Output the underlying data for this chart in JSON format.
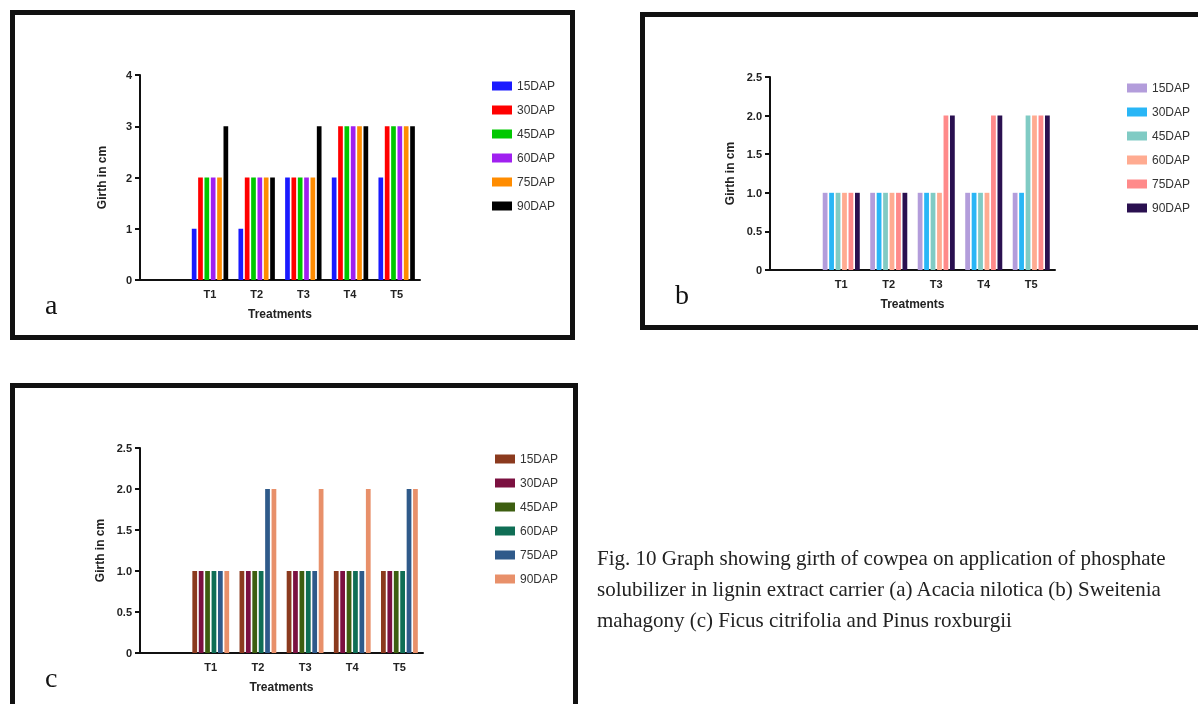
{
  "chart_data": [
    {
      "type": "bar",
      "xlabel": "Treatments",
      "ylabel": "Girth in cm",
      "categories": [
        null,
        "T1",
        "T2",
        "T3",
        "T4",
        "T5"
      ],
      "ylim": [
        0,
        4
      ],
      "yticks": [
        0,
        1,
        2,
        3,
        4
      ],
      "grid": false,
      "legend": "right",
      "annotations": [
        "a"
      ],
      "series": [
        {
          "name": "15DAP",
          "color": "#1a1aff",
          "values": [
            null,
            1,
            1,
            2,
            2,
            2
          ]
        },
        {
          "name": "30DAP",
          "color": "#ff0000",
          "values": [
            null,
            2,
            2,
            2,
            3,
            3
          ]
        },
        {
          "name": "45DAP",
          "color": "#00c800",
          "values": [
            null,
            2,
            2,
            2,
            3,
            3
          ]
        },
        {
          "name": "60DAP",
          "color": "#a020f0",
          "values": [
            null,
            2,
            2,
            2,
            3,
            3
          ]
        },
        {
          "name": "75DAP",
          "color": "#ff8c00",
          "values": [
            null,
            2,
            2,
            2,
            3,
            3
          ]
        },
        {
          "name": "90DAP",
          "color": "#000000",
          "values": [
            null,
            3,
            2,
            3,
            3,
            3
          ]
        }
      ]
    },
    {
      "type": "bar",
      "xlabel": "Treatments",
      "ylabel": "Girth in cm",
      "categories": [
        null,
        "T1",
        "T2",
        "T3",
        "T4",
        "T5"
      ],
      "ylim": [
        0,
        2.5
      ],
      "yticks": [
        0,
        {
          "value": 0.5,
          "label": "0.5"
        },
        {
          "value": 1,
          "label": "1.0"
        },
        {
          "value": 1.5,
          "label": "1.5"
        },
        {
          "value": 2,
          "label": "2.0"
        },
        {
          "value": 2.5,
          "label": "2.5"
        }
      ],
      "grid": false,
      "legend": "right",
      "annotations": [
        "b"
      ],
      "series": [
        {
          "name": "15DAP",
          "color": "#b39ddb",
          "values": [
            null,
            1,
            1,
            1,
            1,
            1
          ]
        },
        {
          "name": "30DAP",
          "color": "#29b6f6",
          "values": [
            null,
            1,
            1,
            1,
            1,
            1
          ]
        },
        {
          "name": "45DAP",
          "color": "#80cbc4",
          "values": [
            null,
            1,
            1,
            1,
            1,
            2
          ]
        },
        {
          "name": "60DAP",
          "color": "#ffab91",
          "values": [
            null,
            1,
            1,
            1,
            1,
            2
          ]
        },
        {
          "name": "75DAP",
          "color": "#ff8a8a",
          "values": [
            null,
            1,
            1,
            2,
            2,
            2
          ]
        },
        {
          "name": "90DAP",
          "color": "#2a1050",
          "values": [
            null,
            1,
            1,
            2,
            2,
            2
          ]
        }
      ]
    },
    {
      "type": "bar",
      "xlabel": "Treatments",
      "ylabel": "Girth in cm",
      "categories": [
        null,
        "T1",
        "T2",
        "T3",
        "T4",
        "T5"
      ],
      "ylim": [
        0,
        2.5
      ],
      "yticks": [
        0,
        {
          "value": 0.5,
          "label": "0.5"
        },
        {
          "value": 1,
          "label": "1.0"
        },
        {
          "value": 1.5,
          "label": "1.5"
        },
        {
          "value": 2,
          "label": "2.0"
        },
        {
          "value": 2.5,
          "label": "2.5"
        }
      ],
      "grid": false,
      "legend": "right",
      "annotations": [
        "c"
      ],
      "series": [
        {
          "name": "15DAP",
          "color": "#8b3a1e",
          "values": [
            null,
            1,
            1,
            1,
            1,
            1
          ]
        },
        {
          "name": "30DAP",
          "color": "#7b1040",
          "values": [
            null,
            1,
            1,
            1,
            1,
            1
          ]
        },
        {
          "name": "45DAP",
          "color": "#3d5e10",
          "values": [
            null,
            1,
            1,
            1,
            1,
            1
          ]
        },
        {
          "name": "60DAP",
          "color": "#0f6e55",
          "values": [
            null,
            1,
            1,
            1,
            1,
            1
          ]
        },
        {
          "name": "75DAP",
          "color": "#2f5a8a",
          "values": [
            null,
            1,
            2,
            1,
            1,
            2
          ]
        },
        {
          "name": "90DAP",
          "color": "#e8906a",
          "values": [
            null,
            1,
            2,
            2,
            2,
            2
          ]
        }
      ]
    },
    {
      "type": "other",
      "annotations": [
        "Fig. 10 Graph showing girth of cowpea on application of phosphate solubilizer in lignin extract carrier (a) Acacia nilotica (b) Sweitenia mahagony (c) Ficus citrifolia and Pinus roxburgii"
      ]
    }
  ]
}
